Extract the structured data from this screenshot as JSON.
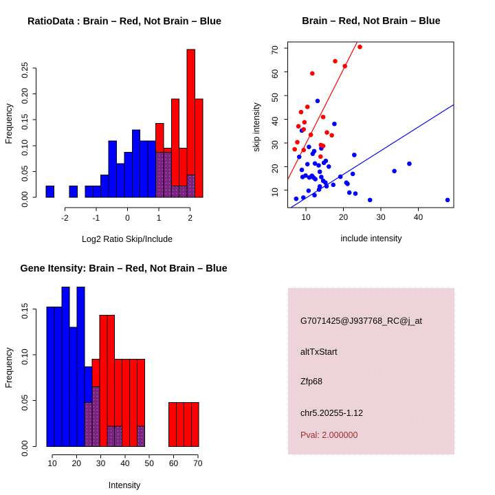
{
  "figure": {
    "background": "#FFFFFF",
    "layout": "2x2 R graphics panel"
  },
  "colors": {
    "brain_red": "#FF0000",
    "not_brain_blue": "#0000FF",
    "overlap_purple": "#7A2482",
    "overlap_dot": "#C45AC8",
    "axis_black": "#000000",
    "info_box_pink": "#F2C3CE",
    "pval_red": "#A52A2A"
  },
  "chart_data": [
    {
      "panel": "top-left",
      "type": "bar",
      "subtype": "overlaid-histogram",
      "title": "RatioData : Brain – Red, Not Brain – Blue",
      "xlabel": "Log2 Ratio Skip/Include",
      "ylabel": "Frequency",
      "x_tick_values": [
        -2,
        -1,
        0,
        1,
        2
      ],
      "x_tick_labels": [
        "-2",
        "-1",
        "0",
        "1",
        "2"
      ],
      "y_tick_values": [
        0,
        0.05,
        0.1,
        0.15,
        0.2,
        0.25
      ],
      "y_tick_labels": [
        "0.00",
        "0.05",
        "0.10",
        "0.15",
        "0.20",
        "0.25"
      ],
      "xlim": [
        -2.85,
        2.55
      ],
      "ylim": [
        0,
        0.29
      ],
      "grid": false,
      "bin_width": 0.25,
      "overlap_color": "#7A2482",
      "series": [
        {
          "name": "Not Brain",
          "color": "#0000FF",
          "bins": [
            [
              -2.6,
              0.022
            ],
            [
              -1.85,
              0.022
            ],
            [
              -1.35,
              0.022
            ],
            [
              -1.1,
              0.022
            ],
            [
              -0.85,
              0.043
            ],
            [
              -0.6,
              0.109
            ],
            [
              -0.35,
              0.065
            ],
            [
              -0.1,
              0.087
            ],
            [
              0.15,
              0.13
            ],
            [
              0.4,
              0.109
            ],
            [
              0.65,
              0.109
            ],
            [
              0.9,
              0.087
            ],
            [
              1.15,
              0.087
            ],
            [
              1.4,
              0.022
            ],
            [
              1.65,
              0.022
            ],
            [
              1.9,
              0.043
            ]
          ]
        },
        {
          "name": "Brain",
          "color": "#FF0000",
          "bins": [
            [
              0.9,
              0.143
            ],
            [
              1.15,
              0.095
            ],
            [
              1.4,
              0.19
            ],
            [
              1.65,
              0.095
            ],
            [
              1.9,
              0.286
            ],
            [
              2.15,
              0.19
            ]
          ]
        }
      ]
    },
    {
      "panel": "top-right",
      "type": "scatter",
      "title": "Brain – Red, Not Brain – Blue",
      "xlabel": "include intensity",
      "ylabel": "skip intensity",
      "x_tick_values": [
        10,
        20,
        30,
        40
      ],
      "x_tick_labels": [
        "10",
        "20",
        "30",
        "40"
      ],
      "y_tick_values": [
        10,
        20,
        30,
        40,
        50,
        60,
        70
      ],
      "y_tick_labels": [
        "10",
        "20",
        "30",
        "40",
        "50",
        "60",
        "70"
      ],
      "xlim": [
        5.2,
        49.4
      ],
      "ylim": [
        2.7,
        72.6
      ],
      "grid": false,
      "series": [
        {
          "name": "Not Brain",
          "color": "#0000FF",
          "line": [
            [
              6.0,
              2.7
            ],
            [
              49.4,
              46.1
            ]
          ],
          "points": [
            [
              13.1,
              47.7
            ],
            [
              17.6,
              38.0
            ],
            [
              8.9,
              35.2
            ],
            [
              10.8,
              28.3
            ],
            [
              14.1,
              27.7
            ],
            [
              12.2,
              26.5
            ],
            [
              11.8,
              25.4
            ],
            [
              8.2,
              24.1
            ],
            [
              22.9,
              24.9
            ],
            [
              15.3,
              22.4
            ],
            [
              10.4,
              21.0
            ],
            [
              12.4,
              21.3
            ],
            [
              13.4,
              20.5
            ],
            [
              14.8,
              21.6
            ],
            [
              16.1,
              20.0
            ],
            [
              33.6,
              18.1
            ],
            [
              37.6,
              21.2
            ],
            [
              8.9,
              18.6
            ],
            [
              9.1,
              15.6
            ],
            [
              9.9,
              16.2
            ],
            [
              10.9,
              15.4
            ],
            [
              11.6,
              16.1
            ],
            [
              12.0,
              15.4
            ],
            [
              12.5,
              14.7
            ],
            [
              13.7,
              17.8
            ],
            [
              14.1,
              15.6
            ],
            [
              14.6,
              14.0
            ],
            [
              15.2,
              13.2
            ],
            [
              19.2,
              15.7
            ],
            [
              22.5,
              16.9
            ],
            [
              20.8,
              13.2
            ],
            [
              21.1,
              12.7
            ],
            [
              17.3,
              12.3
            ],
            [
              15.5,
              11.7
            ],
            [
              13.7,
              11.6
            ],
            [
              13.5,
              10.3
            ],
            [
              10.7,
              9.8
            ],
            [
              12.3,
              7.9
            ],
            [
              7.4,
              6.4
            ],
            [
              9.3,
              6.9
            ],
            [
              21.6,
              9.0
            ],
            [
              23.2,
              8.6
            ],
            [
              27.1,
              5.9
            ],
            [
              47.8,
              5.9
            ]
          ]
        },
        {
          "name": "Brain",
          "color": "#FF0000",
          "line": [
            [
              5.2,
              14.7
            ],
            [
              23.7,
              72.6
            ]
          ],
          "points": [
            [
              24.4,
              70.5
            ],
            [
              17.8,
              64.5
            ],
            [
              20.4,
              62.4
            ],
            [
              11.7,
              59.3
            ],
            [
              10.4,
              45.2
            ],
            [
              8.7,
              43.0
            ],
            [
              14.6,
              40.9
            ],
            [
              9.6,
              38.7
            ],
            [
              8.0,
              37.0
            ],
            [
              9.4,
              35.7
            ],
            [
              15.6,
              34.4
            ],
            [
              16.9,
              33.2
            ],
            [
              11.3,
              33.4
            ],
            [
              7.7,
              30.3
            ],
            [
              14.0,
              29.1
            ],
            [
              14.6,
              28.7
            ],
            [
              7.0,
              27.3
            ],
            [
              9.4,
              27.0
            ],
            [
              13.9,
              24.2
            ]
          ]
        }
      ]
    },
    {
      "panel": "bottom-left",
      "type": "bar",
      "subtype": "overlaid-histogram",
      "title": "Gene Itensity: Brain – Red, Not Brain – Blue",
      "xlabel": "Intensity",
      "ylabel": "Frequency",
      "x_tick_values": [
        10,
        20,
        30,
        40,
        50,
        60,
        70
      ],
      "x_tick_labels": [
        "10",
        "20",
        "30",
        "40",
        "50",
        "60",
        "70"
      ],
      "y_tick_values": [
        0,
        0.05,
        0.1,
        0.15
      ],
      "y_tick_labels": [
        "0.00",
        "0.05",
        "0.10",
        "0.15"
      ],
      "xlim": [
        7.8,
        70.4
      ],
      "ylim": [
        0,
        0.175
      ],
      "grid": false,
      "bin_width": 3.1,
      "overlap_color": "#7A2482",
      "series": [
        {
          "name": "Not Brain",
          "color": "#0000FF",
          "bins": [
            [
              7.8,
              0.152
            ],
            [
              10.9,
              0.152
            ],
            [
              14.0,
              0.174
            ],
            [
              17.1,
              0.13
            ],
            [
              20.2,
              0.174
            ],
            [
              23.3,
              0.087
            ],
            [
              26.4,
              0.065
            ],
            [
              32.6,
              0.022
            ],
            [
              35.7,
              0.022
            ],
            [
              45.0,
              0.022
            ]
          ]
        },
        {
          "name": "Brain",
          "color": "#FF0000",
          "bins": [
            [
              23.3,
              0.048
            ],
            [
              26.4,
              0.095
            ],
            [
              29.5,
              0.143
            ],
            [
              32.6,
              0.143
            ],
            [
              35.7,
              0.095
            ],
            [
              38.8,
              0.095
            ],
            [
              41.9,
              0.095
            ],
            [
              45.0,
              0.095
            ],
            [
              58.0,
              0.048
            ],
            [
              61.1,
              0.048
            ],
            [
              64.2,
              0.048
            ],
            [
              67.3,
              0.048
            ]
          ]
        }
      ]
    },
    {
      "panel": "bottom-right",
      "type": "info-panel",
      "background": "#F2C3CE",
      "lines": [
        "G7071425@J937768_RC@j_at",
        "altTxStart",
        "Zfp68",
        "chr5.20255-1.12",
        "Pval: 2.000000"
      ],
      "text_color": "#000000",
      "pval_color": "#A52A2A"
    }
  ]
}
